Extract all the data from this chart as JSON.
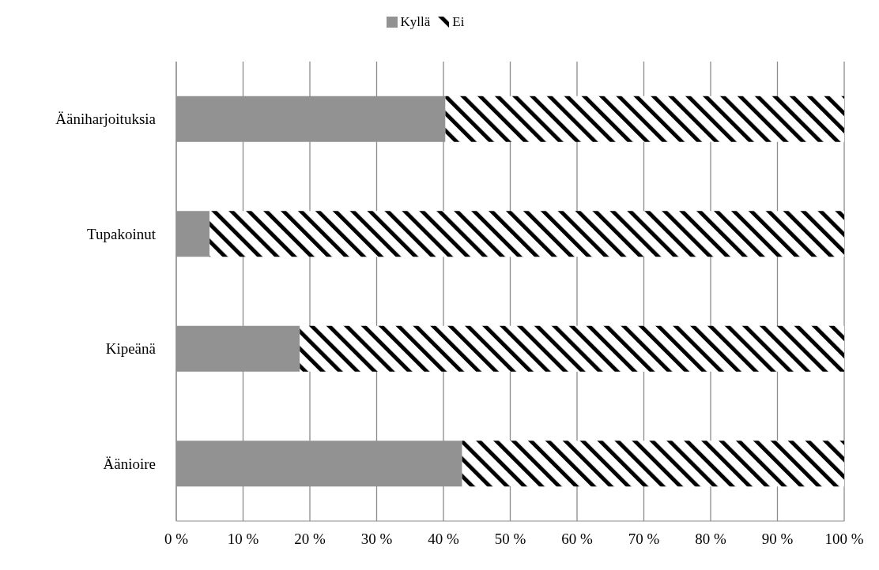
{
  "chart_data": {
    "type": "bar",
    "orientation": "horizontal",
    "stacked": true,
    "categories": [
      "Ääniharjoituksia",
      "Tupakoinut",
      "Kipeänä",
      "Äänioire"
    ],
    "series": [
      {
        "name": "Kyllä",
        "color": "#929292",
        "values": [
          40.3,
          5.0,
          18.5,
          42.8
        ]
      },
      {
        "name": "Ei",
        "color": "#000000",
        "values": [
          59.7,
          95.0,
          81.5,
          57.2
        ]
      }
    ],
    "xlim": [
      0,
      100
    ],
    "xticks": [
      {
        "value": 0,
        "label": "0 %"
      },
      {
        "value": 10,
        "label": "10 %"
      },
      {
        "value": 20,
        "label": "20 %"
      },
      {
        "value": 30,
        "label": "30 %"
      },
      {
        "value": 40,
        "label": "40 %"
      },
      {
        "value": 50,
        "label": "50 %"
      },
      {
        "value": 60,
        "label": "60 %"
      },
      {
        "value": 70,
        "label": "70 %"
      },
      {
        "value": 80,
        "label": "80 %"
      },
      {
        "value": 90,
        "label": "90 %"
      },
      {
        "value": 100,
        "label": "100 %"
      }
    ],
    "grid": "x",
    "legend": "top"
  }
}
